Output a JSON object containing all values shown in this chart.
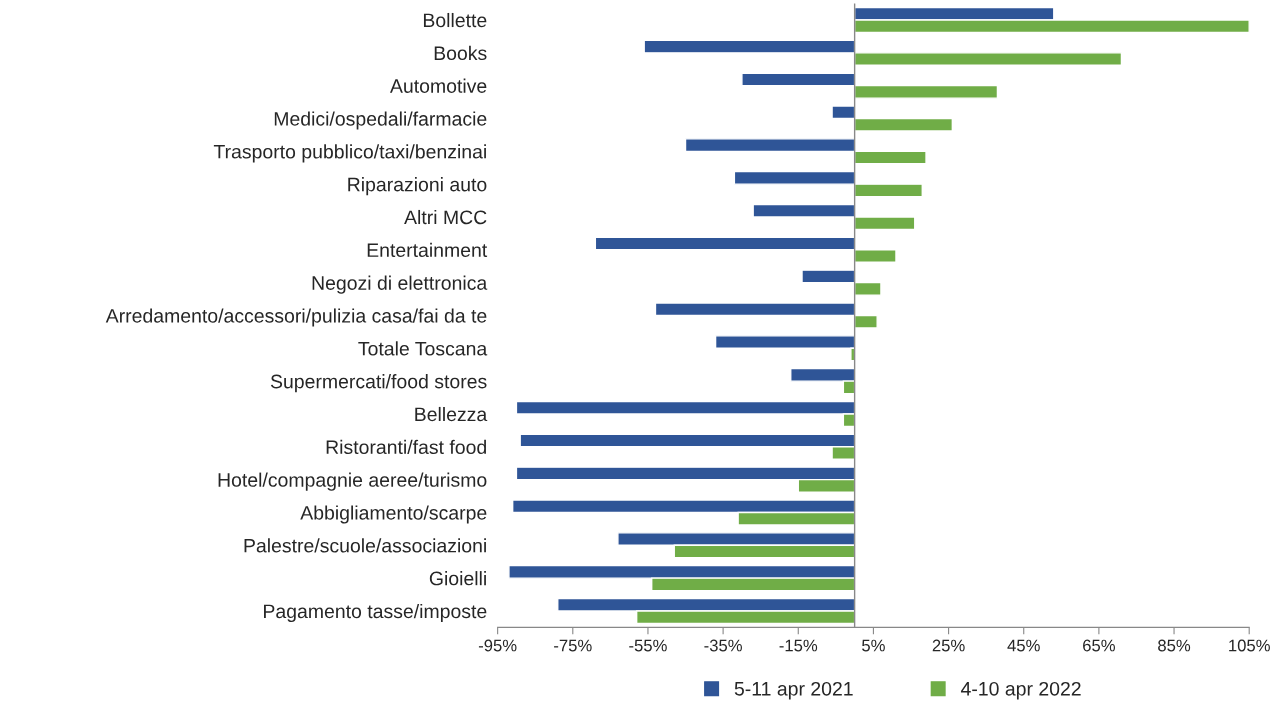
{
  "chart_data": {
    "type": "bar",
    "orientation": "horizontal",
    "categories": [
      "Bollette",
      "Books",
      "Automotive",
      "Medici/ospedali/farmacie",
      "Trasporto pubblico/taxi/benzinai",
      "Riparazioni auto",
      "Altri MCC",
      "Entertainment",
      "Negozi di elettronica",
      "Arredamento/accessori/pulizia casa/fai da te",
      "Totale Toscana",
      "Supermercati/food stores",
      "Bellezza",
      "Ristoranti/fast food",
      "Hotel/compagnie aeree/turismo",
      "Abbigliamento/scarpe",
      "Palestre/scuole/associazioni",
      "Gioielli",
      "Pagamento tasse/imposte"
    ],
    "series": [
      {
        "name": "5-11 apr 2021",
        "color": "#2f5597",
        "values": [
          53,
          -56,
          -30,
          -6,
          -45,
          -32,
          -27,
          -69,
          -14,
          -53,
          -37,
          -17,
          -90,
          -89,
          -90,
          -91,
          -63,
          -92,
          -79
        ]
      },
      {
        "name": "4-10 apr 2022",
        "color": "#70ad47",
        "values": [
          105,
          71,
          38,
          26,
          19,
          18,
          16,
          11,
          7,
          6,
          -1,
          -3,
          -3,
          -6,
          -15,
          -31,
          -48,
          -54,
          -58
        ]
      }
    ],
    "xlim": [
      -95,
      105
    ],
    "xticks": [
      {
        "value": -95,
        "label": "-95%"
      },
      {
        "value": -75,
        "label": "-75%"
      },
      {
        "value": -55,
        "label": "-55%"
      },
      {
        "value": -35,
        "label": "-35%"
      },
      {
        "value": -15,
        "label": "-15%"
      },
      {
        "value": 5,
        "label": "5%"
      },
      {
        "value": 25,
        "label": "25%"
      },
      {
        "value": 45,
        "label": "45%"
      },
      {
        "value": 65,
        "label": "65%"
      },
      {
        "value": 85,
        "label": "85%"
      },
      {
        "value": 105,
        "label": "105%"
      }
    ],
    "grid": false,
    "legend": "bottom"
  }
}
